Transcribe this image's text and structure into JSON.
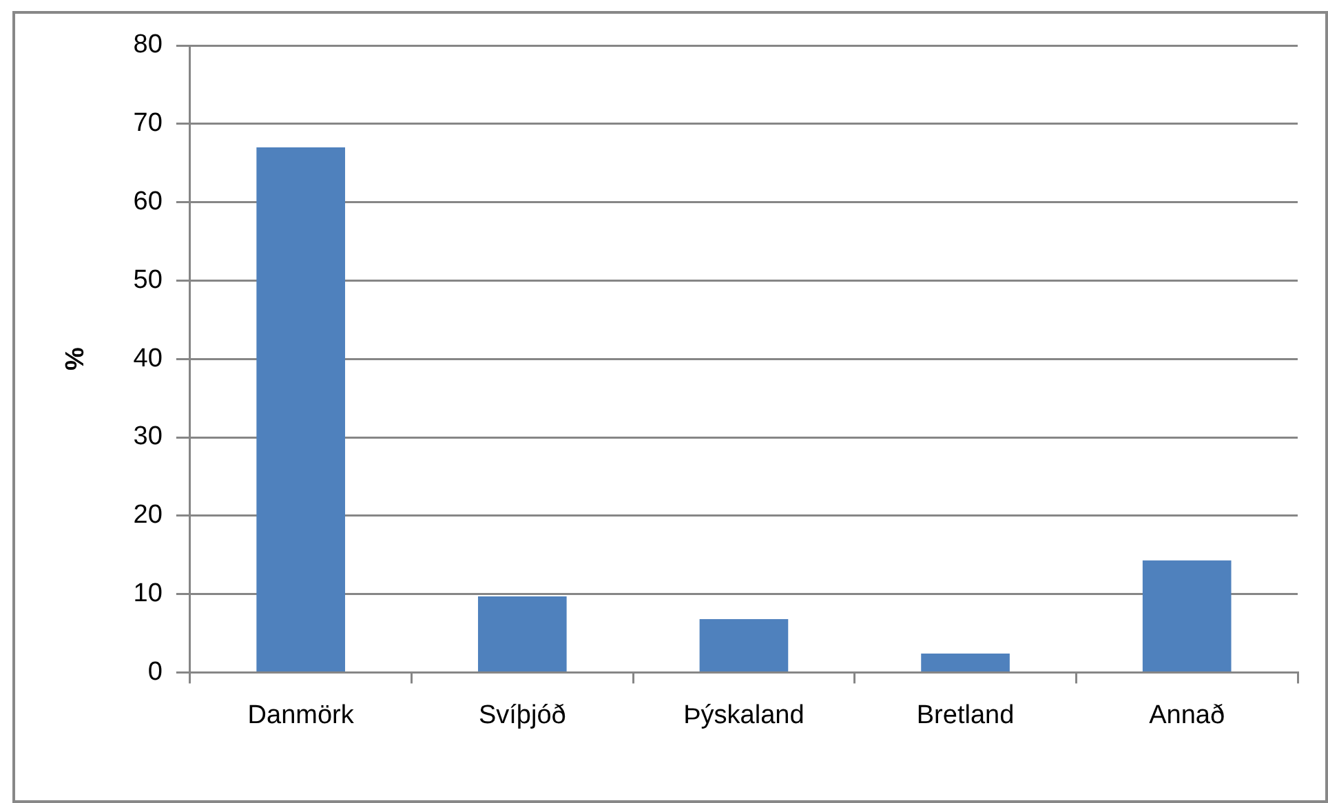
{
  "chart_data": {
    "type": "bar",
    "ylabel": "%",
    "categories": [
      "Danmörk",
      "Svíþjóð",
      "Þýskaland",
      "Bretland",
      "Annað"
    ],
    "values": [
      67,
      9.7,
      6.8,
      2.4,
      14.3
    ],
    "color": "#4f81bd",
    "ylim": [
      0,
      80
    ],
    "yticks": [
      0,
      10,
      20,
      30,
      40,
      50,
      60,
      70,
      80
    ],
    "grid": "y",
    "legend": false
  }
}
